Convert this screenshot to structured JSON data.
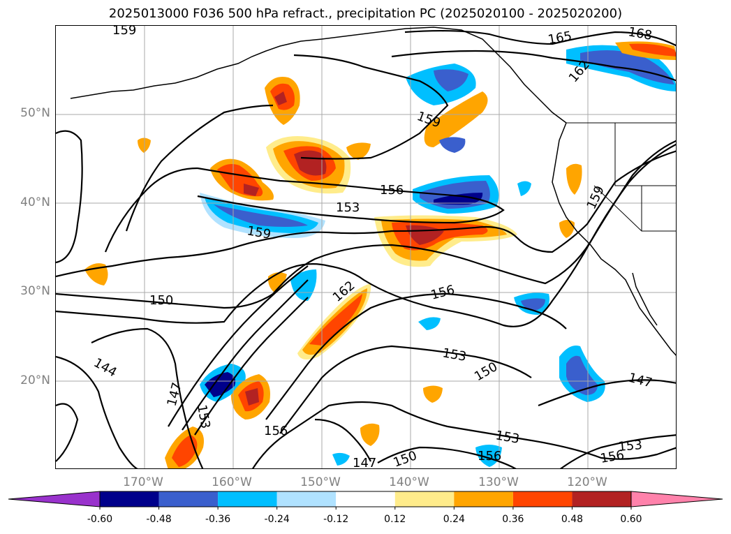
{
  "title": "2025013000 F036 500 hPa refract., precipitation PC (2025020100 - 2025020200)",
  "lat_labels": [
    "50°N",
    "40°N",
    "30°N",
    "20°N"
  ],
  "lon_labels": [
    "170°W",
    "160°W",
    "150°W",
    "140°W",
    "130°W",
    "120°W"
  ],
  "contour_labels": [
    "159",
    "165",
    "168",
    "162",
    "159",
    "156",
    "153",
    "159",
    "156",
    "162",
    "150",
    "153",
    "150",
    "144",
    "147",
    "153",
    "156",
    "147",
    "150",
    "156",
    "153",
    "147",
    "153",
    "156",
    "159"
  ],
  "colorbar": {
    "ticks": [
      "-0.60",
      "-0.48",
      "-0.36",
      "-0.24",
      "-0.12",
      "0.12",
      "0.24",
      "0.36",
      "0.48",
      "0.60"
    ],
    "colors": [
      "#9932cc",
      "#00008b",
      "#3a5fcd",
      "#00bfff",
      "#b0e2ff",
      "#ffffff",
      "#ffec8b",
      "#ffa500",
      "#ff4500",
      "#b22222",
      "#ff82ab"
    ]
  },
  "chart_data": {
    "type": "heatmap",
    "title": "2025013000 F036 500 hPa refract., precipitation PC (2025020100 - 2025020200)",
    "projection": "lat-lon",
    "lon_range": [
      -180,
      -110
    ],
    "lat_range": [
      10,
      60
    ],
    "grid": true,
    "contour_levels": [
      144,
      147,
      150,
      153,
      156,
      159,
      162,
      165,
      168
    ],
    "colorbar_ticks": [
      -0.6,
      -0.48,
      -0.36,
      -0.24,
      -0.12,
      0.12,
      0.24,
      0.36,
      0.48,
      0.6
    ],
    "colorbar_extend": "both"
  }
}
